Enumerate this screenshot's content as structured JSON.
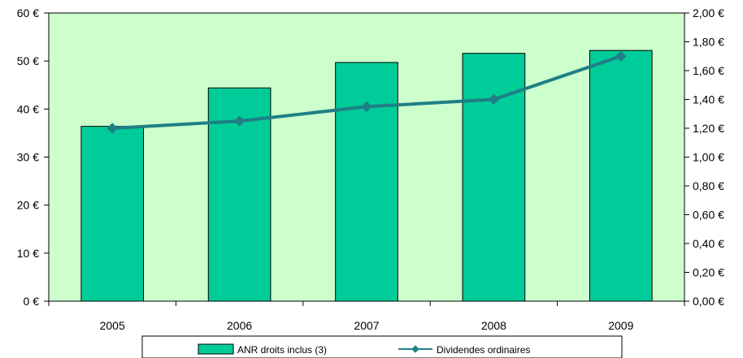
{
  "colors": {
    "plot_background": "#ccffcc",
    "bar_fill": "#00cc99",
    "bar_stroke": "#000000",
    "line_color": "#1f7f86",
    "marker_color": "#1f7f86",
    "axis_color": "#000000",
    "legend_border": "#000000"
  },
  "chart_data": {
    "type": "bar",
    "categories": [
      "2005",
      "2006",
      "2007",
      "2008",
      "2009"
    ],
    "series": [
      {
        "name": "ANR droits inclus (3)",
        "type": "bar",
        "axis": "left",
        "values": [
          36.4,
          44.4,
          49.7,
          51.6,
          52.2
        ]
      },
      {
        "name": "Dividendes ordinaires",
        "type": "line",
        "axis": "right",
        "marker": "diamond",
        "values": [
          1.2,
          1.25,
          1.35,
          1.4,
          1.7
        ]
      }
    ],
    "left_axis": {
      "ylim": [
        0,
        60
      ],
      "ticks": [
        0,
        10,
        20,
        30,
        40,
        50,
        60
      ],
      "tick_labels": [
        "0 €",
        "10 €",
        "20 €",
        "30 €",
        "40 €",
        "50 €",
        "60 €"
      ]
    },
    "right_axis": {
      "ylim": [
        0,
        2
      ],
      "ticks": [
        0,
        0.2,
        0.4,
        0.6,
        0.8,
        1.0,
        1.2,
        1.4,
        1.6,
        1.8,
        2.0
      ],
      "tick_labels": [
        "0,00 €",
        "0,20 €",
        "0,40 €",
        "0,60 €",
        "0,80 €",
        "1,00 €",
        "1,20 €",
        "1,40 €",
        "1,60 €",
        "1,80 €",
        "2,00 €"
      ]
    },
    "legend_position": "bottom",
    "grid": false
  }
}
